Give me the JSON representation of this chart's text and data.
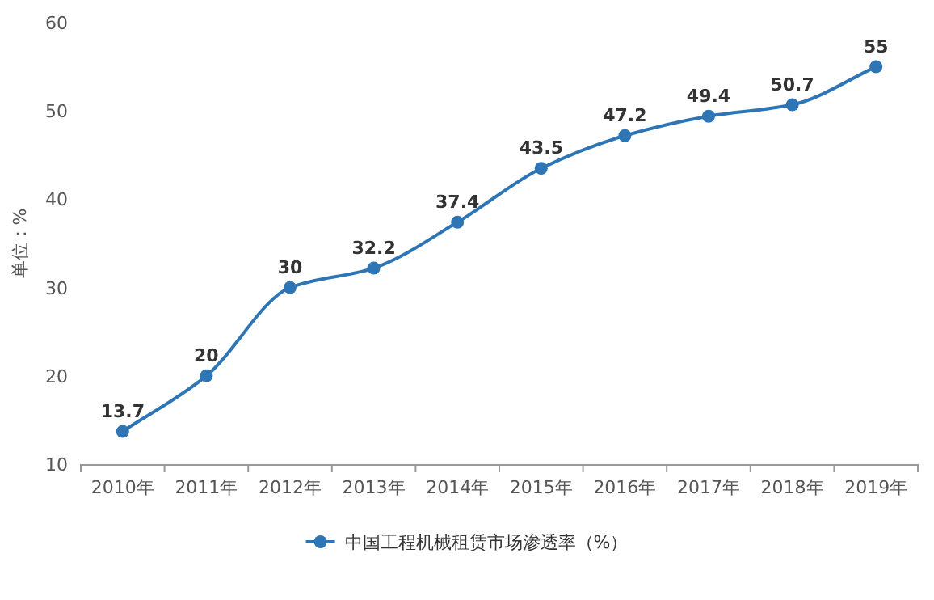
{
  "chart_data": {
    "type": "line",
    "ylabel": "单位：%",
    "categories": [
      "2010年",
      "2011年",
      "2012年",
      "2013年",
      "2014年",
      "2015年",
      "2016年",
      "2017年",
      "2018年",
      "2019年"
    ],
    "series": [
      {
        "name": "中国工程机械租赁市场渗透率（%）",
        "color": "#2e75b6",
        "values": [
          13.7,
          20,
          30,
          32.2,
          37.4,
          43.5,
          47.2,
          49.4,
          50.7,
          55
        ]
      }
    ],
    "ylim": [
      10,
      60
    ],
    "yticks": [
      10,
      20,
      30,
      40,
      50,
      60
    ],
    "legend": "bottom",
    "marker": "circle",
    "data_labels": true
  }
}
